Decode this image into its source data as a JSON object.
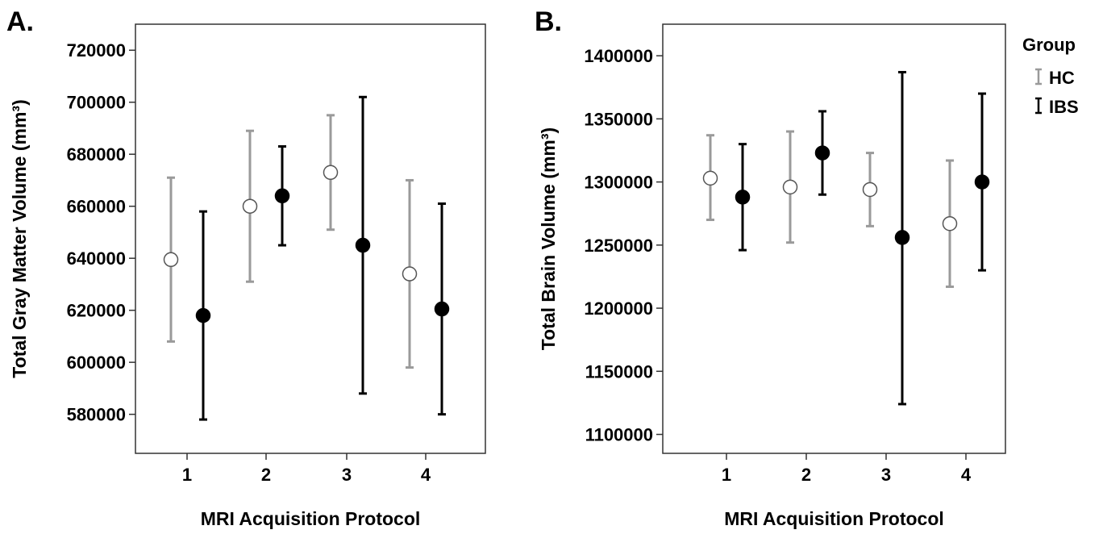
{
  "chart_data": [
    {
      "panel_label": "A.",
      "type": "scatter",
      "xlabel": "MRI Acquisition Protocol",
      "ylabel": "Total Gray Matter Volume (mm³)",
      "categories": [
        "1",
        "2",
        "3",
        "4"
      ],
      "yticks": [
        "580000",
        "600000",
        "620000",
        "640000",
        "660000",
        "680000",
        "700000",
        "720000"
      ],
      "ylim": [
        565000,
        730000
      ],
      "series": [
        {
          "name": "HC",
          "points": [
            {
              "x": "1",
              "mean": 639500,
              "low": 608000,
              "high": 671000
            },
            {
              "x": "2",
              "mean": 660000,
              "low": 631000,
              "high": 689000
            },
            {
              "x": "3",
              "mean": 673000,
              "low": 651000,
              "high": 695000
            },
            {
              "x": "4",
              "mean": 634000,
              "low": 598000,
              "high": 670000
            }
          ]
        },
        {
          "name": "IBS",
          "points": [
            {
              "x": "1",
              "mean": 618000,
              "low": 578000,
              "high": 658000
            },
            {
              "x": "2",
              "mean": 664000,
              "low": 645000,
              "high": 683000
            },
            {
              "x": "3",
              "mean": 645000,
              "low": 588000,
              "high": 702000
            },
            {
              "x": "4",
              "mean": 620500,
              "low": 580000,
              "high": 661000
            }
          ]
        }
      ]
    },
    {
      "panel_label": "B.",
      "type": "scatter",
      "xlabel": "MRI Acquisition Protocol",
      "ylabel": "Total Brain Volume (mm³)",
      "categories": [
        "1",
        "2",
        "3",
        "4"
      ],
      "yticks": [
        "1100000",
        "1150000",
        "1200000",
        "1250000",
        "1300000",
        "1350000",
        "1400000"
      ],
      "ylim": [
        1085000,
        1425000
      ],
      "series": [
        {
          "name": "HC",
          "points": [
            {
              "x": "1",
              "mean": 1303000,
              "low": 1270000,
              "high": 1337000
            },
            {
              "x": "2",
              "mean": 1296000,
              "low": 1252000,
              "high": 1340000
            },
            {
              "x": "3",
              "mean": 1294000,
              "low": 1265000,
              "high": 1323000
            },
            {
              "x": "4",
              "mean": 1267000,
              "low": 1217000,
              "high": 1317000
            }
          ]
        },
        {
          "name": "IBS",
          "points": [
            {
              "x": "1",
              "mean": 1288000,
              "low": 1246000,
              "high": 1330000
            },
            {
              "x": "2",
              "mean": 1323000,
              "low": 1290000,
              "high": 1356000
            },
            {
              "x": "3",
              "mean": 1256000,
              "low": 1124000,
              "high": 1387000
            },
            {
              "x": "4",
              "mean": 1300000,
              "low": 1230000,
              "high": 1370000
            }
          ]
        }
      ]
    }
  ],
  "legend": {
    "title": "Group",
    "items": [
      {
        "name": "HC",
        "color": "#9a9a9a",
        "marker": "open-circle"
      },
      {
        "name": "IBS",
        "color": "#000000",
        "marker": "filled-circle"
      }
    ]
  }
}
